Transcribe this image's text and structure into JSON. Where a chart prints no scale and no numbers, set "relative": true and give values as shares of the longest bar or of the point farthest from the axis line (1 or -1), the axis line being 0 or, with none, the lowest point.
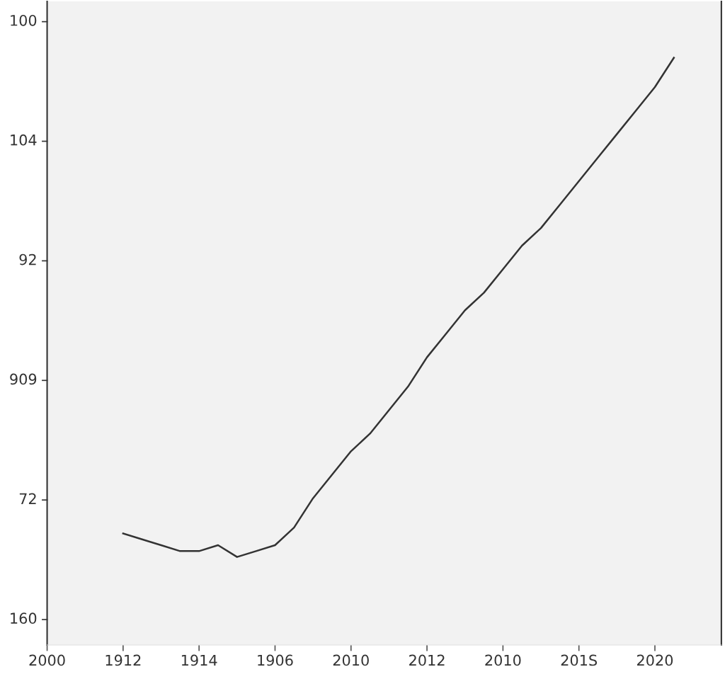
{
  "chart_data": {
    "type": "line",
    "relative": true,
    "categories": [
      "2000",
      null,
      null,
      null,
      "1912",
      null,
      null,
      null,
      "1914",
      null,
      null,
      null,
      "1906",
      null,
      null,
      null,
      "2010",
      null,
      null,
      null,
      "2012",
      null,
      null,
      null,
      "2010",
      null,
      null,
      null,
      "201S",
      null,
      null,
      null,
      "2020",
      null,
      null,
      null
    ],
    "series": [
      {
        "color": "#333333",
        "values": [
          null,
          null,
          null,
          null,
          0.19,
          0.18,
          0.17,
          0.16,
          0.16,
          0.17,
          0.15,
          0.16,
          0.17,
          0.2,
          0.25,
          0.29,
          0.33,
          0.36,
          0.4,
          0.44,
          0.49,
          0.53,
          0.57,
          0.6,
          0.64,
          0.68,
          0.71,
          0.75,
          0.79,
          0.83,
          0.87,
          0.91,
          0.95,
          1.0,
          null,
          null
        ]
      }
    ],
    "annotations": [
      "160",
      "72",
      "909",
      "92",
      "104",
      "100"
    ],
    "marker": "none",
    "line_style": "solid"
  }
}
